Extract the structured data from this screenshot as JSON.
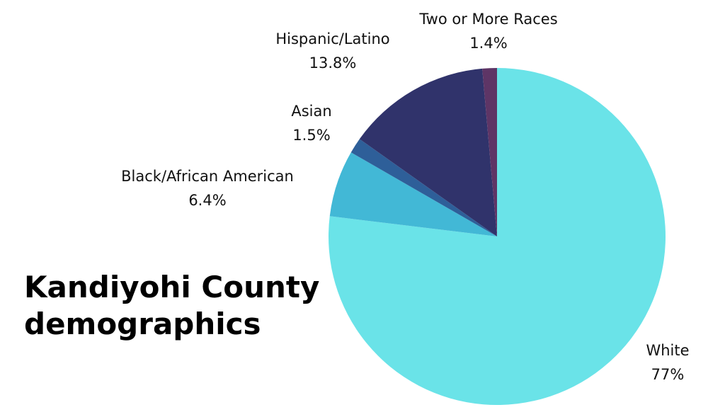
{
  "chart_data": {
    "type": "pie",
    "title": "Kandiyohi County demographics",
    "categories": [
      "White",
      "Black/African American",
      "Asian",
      "Hispanic/Latino",
      "Two or More Races"
    ],
    "values": [
      77,
      6.4,
      1.5,
      13.8,
      1.4
    ],
    "value_labels": [
      "77%",
      "6.4%",
      "1.5%",
      "13.8%",
      "1.4%"
    ],
    "colors": [
      "#6ae3e8",
      "#42b8d6",
      "#2e5f99",
      "#30336b",
      "#5e3566"
    ]
  }
}
